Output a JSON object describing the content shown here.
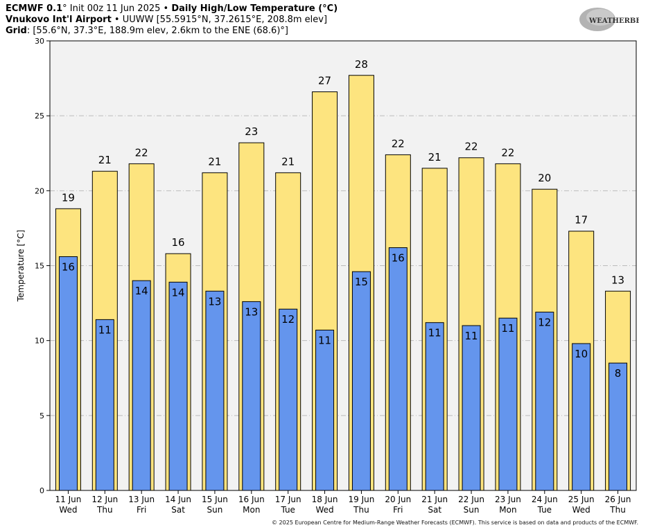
{
  "header": {
    "line1_model": "ECMWF 0.1",
    "line1_deg": "°",
    "line1_init": " Init 00z 11 Jun 2025",
    "line1_sep": " • ",
    "line1_title": "Daily High/Low Temperature (°C)",
    "line2_station": "Vnukovo Int'l Airport",
    "line2_sep": " • ",
    "line2_details": "UUWW [55.5915°N, 37.2615°E, 208.8m elev]",
    "line3_label": "Grid",
    "line3_details": ": [55.6°N, 37.3°E, 188.9m elev, 2.6km to the ENE (68.6)°]"
  },
  "logo": {
    "text": "WEATHERBELL"
  },
  "copyright": "© 2025 European Centre for Medium-Range Weather Forecasts (ECMWF). This service is based on data and products of the ECMWF.",
  "chart_data": {
    "type": "bar",
    "ylabel": "Temperature [°C]",
    "ylim": [
      0,
      30
    ],
    "yticks": [
      0,
      5,
      10,
      15,
      20,
      25,
      30
    ],
    "grid": true,
    "categories": [
      "11 Jun",
      "12 Jun",
      "13 Jun",
      "14 Jun",
      "15 Jun",
      "16 Jun",
      "17 Jun",
      "18 Jun",
      "19 Jun",
      "20 Jun",
      "21 Jun",
      "22 Jun",
      "23 Jun",
      "24 Jun",
      "25 Jun",
      "26 Jun"
    ],
    "weekdays": [
      "Wed",
      "Thu",
      "Fri",
      "Sat",
      "Sun",
      "Mon",
      "Tue",
      "Wed",
      "Thu",
      "Fri",
      "Sat",
      "Sun",
      "Mon",
      "Tue",
      "Wed",
      "Thu"
    ],
    "series": [
      {
        "key": "high",
        "values": [
          18.8,
          21.3,
          21.8,
          15.8,
          21.2,
          23.2,
          21.2,
          26.6,
          27.7,
          22.4,
          21.5,
          22.2,
          21.8,
          20.1,
          17.3,
          13.3
        ],
        "labels": [
          "19",
          "21",
          "22",
          "16",
          "21",
          "23",
          "21",
          "27",
          "28",
          "22",
          "21",
          "22",
          "22",
          "20",
          "17",
          "13"
        ],
        "color": "#fde47f"
      },
      {
        "key": "low",
        "values": [
          15.6,
          11.4,
          14.0,
          13.9,
          13.3,
          12.6,
          12.1,
          10.7,
          14.6,
          16.2,
          11.2,
          11.0,
          11.5,
          11.9,
          9.8,
          8.5
        ],
        "labels": [
          "16",
          "11",
          "14",
          "14",
          "13",
          "13",
          "12",
          "11",
          "15",
          "16",
          "11",
          "11",
          "11",
          "12",
          "10",
          "8"
        ],
        "color": "#6495ed"
      }
    ],
    "colors": {
      "plot_bg": "#f2f2f2",
      "grid": "#bbbbbb",
      "bar_edge": "#000000"
    }
  }
}
